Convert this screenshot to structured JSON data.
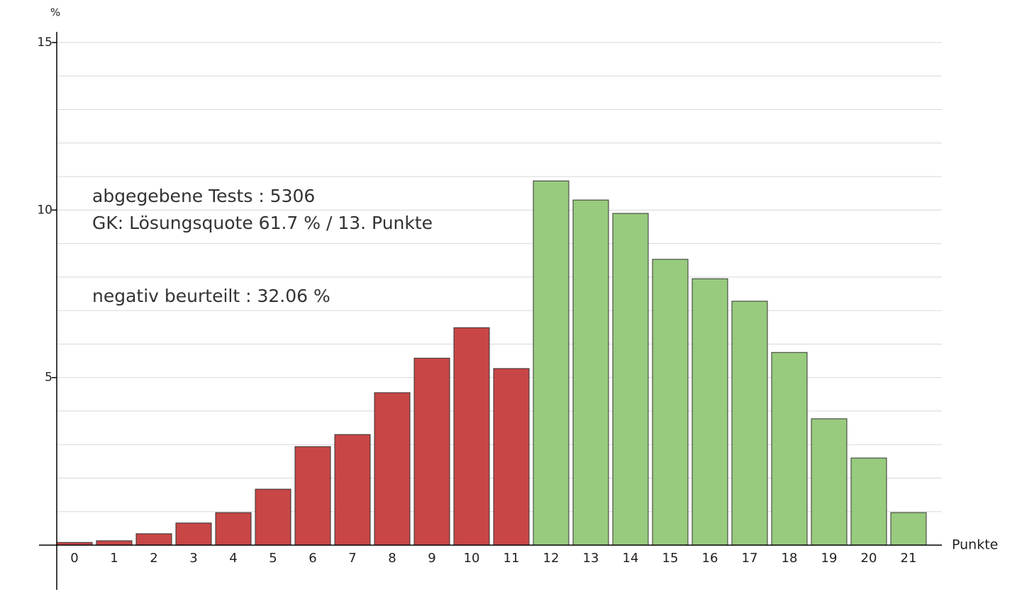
{
  "chart_data": {
    "type": "bar",
    "ylabel": "%",
    "xlabel": "Punkte",
    "annotations": [
      "abgegebene Tests :  5306",
      "GK: Lösungsquote  61.7 % / 13. Punkte",
      "negativ beurteilt :  32.06 %"
    ],
    "categories": [
      0,
      1,
      2,
      3,
      4,
      5,
      6,
      7,
      8,
      9,
      10,
      11,
      12,
      13,
      14,
      15,
      16,
      17,
      18,
      19,
      20,
      21
    ],
    "values": [
      0.08,
      0.13,
      0.34,
      0.66,
      0.97,
      1.67,
      2.94,
      3.3,
      4.55,
      5.58,
      6.49,
      5.27,
      10.87,
      10.3,
      9.9,
      8.53,
      7.95,
      7.28,
      5.75,
      3.77,
      2.6,
      0.97
    ],
    "colors": [
      "#c84646",
      "#c84646",
      "#c84646",
      "#c84646",
      "#c84646",
      "#c84646",
      "#c84646",
      "#c84646",
      "#c84646",
      "#c84646",
      "#c84646",
      "#c84646",
      "#98cb7e",
      "#98cb7e",
      "#98cb7e",
      "#98cb7e",
      "#98cb7e",
      "#98cb7e",
      "#98cb7e",
      "#98cb7e",
      "#98cb7e",
      "#98cb7e"
    ],
    "ylim": [
      0,
      15
    ],
    "yticks": [
      5,
      10,
      15
    ],
    "grid_lines": [
      1,
      2,
      3,
      4,
      5,
      6,
      7,
      8,
      9,
      10,
      11,
      12,
      13,
      14,
      15
    ],
    "grid": true
  }
}
